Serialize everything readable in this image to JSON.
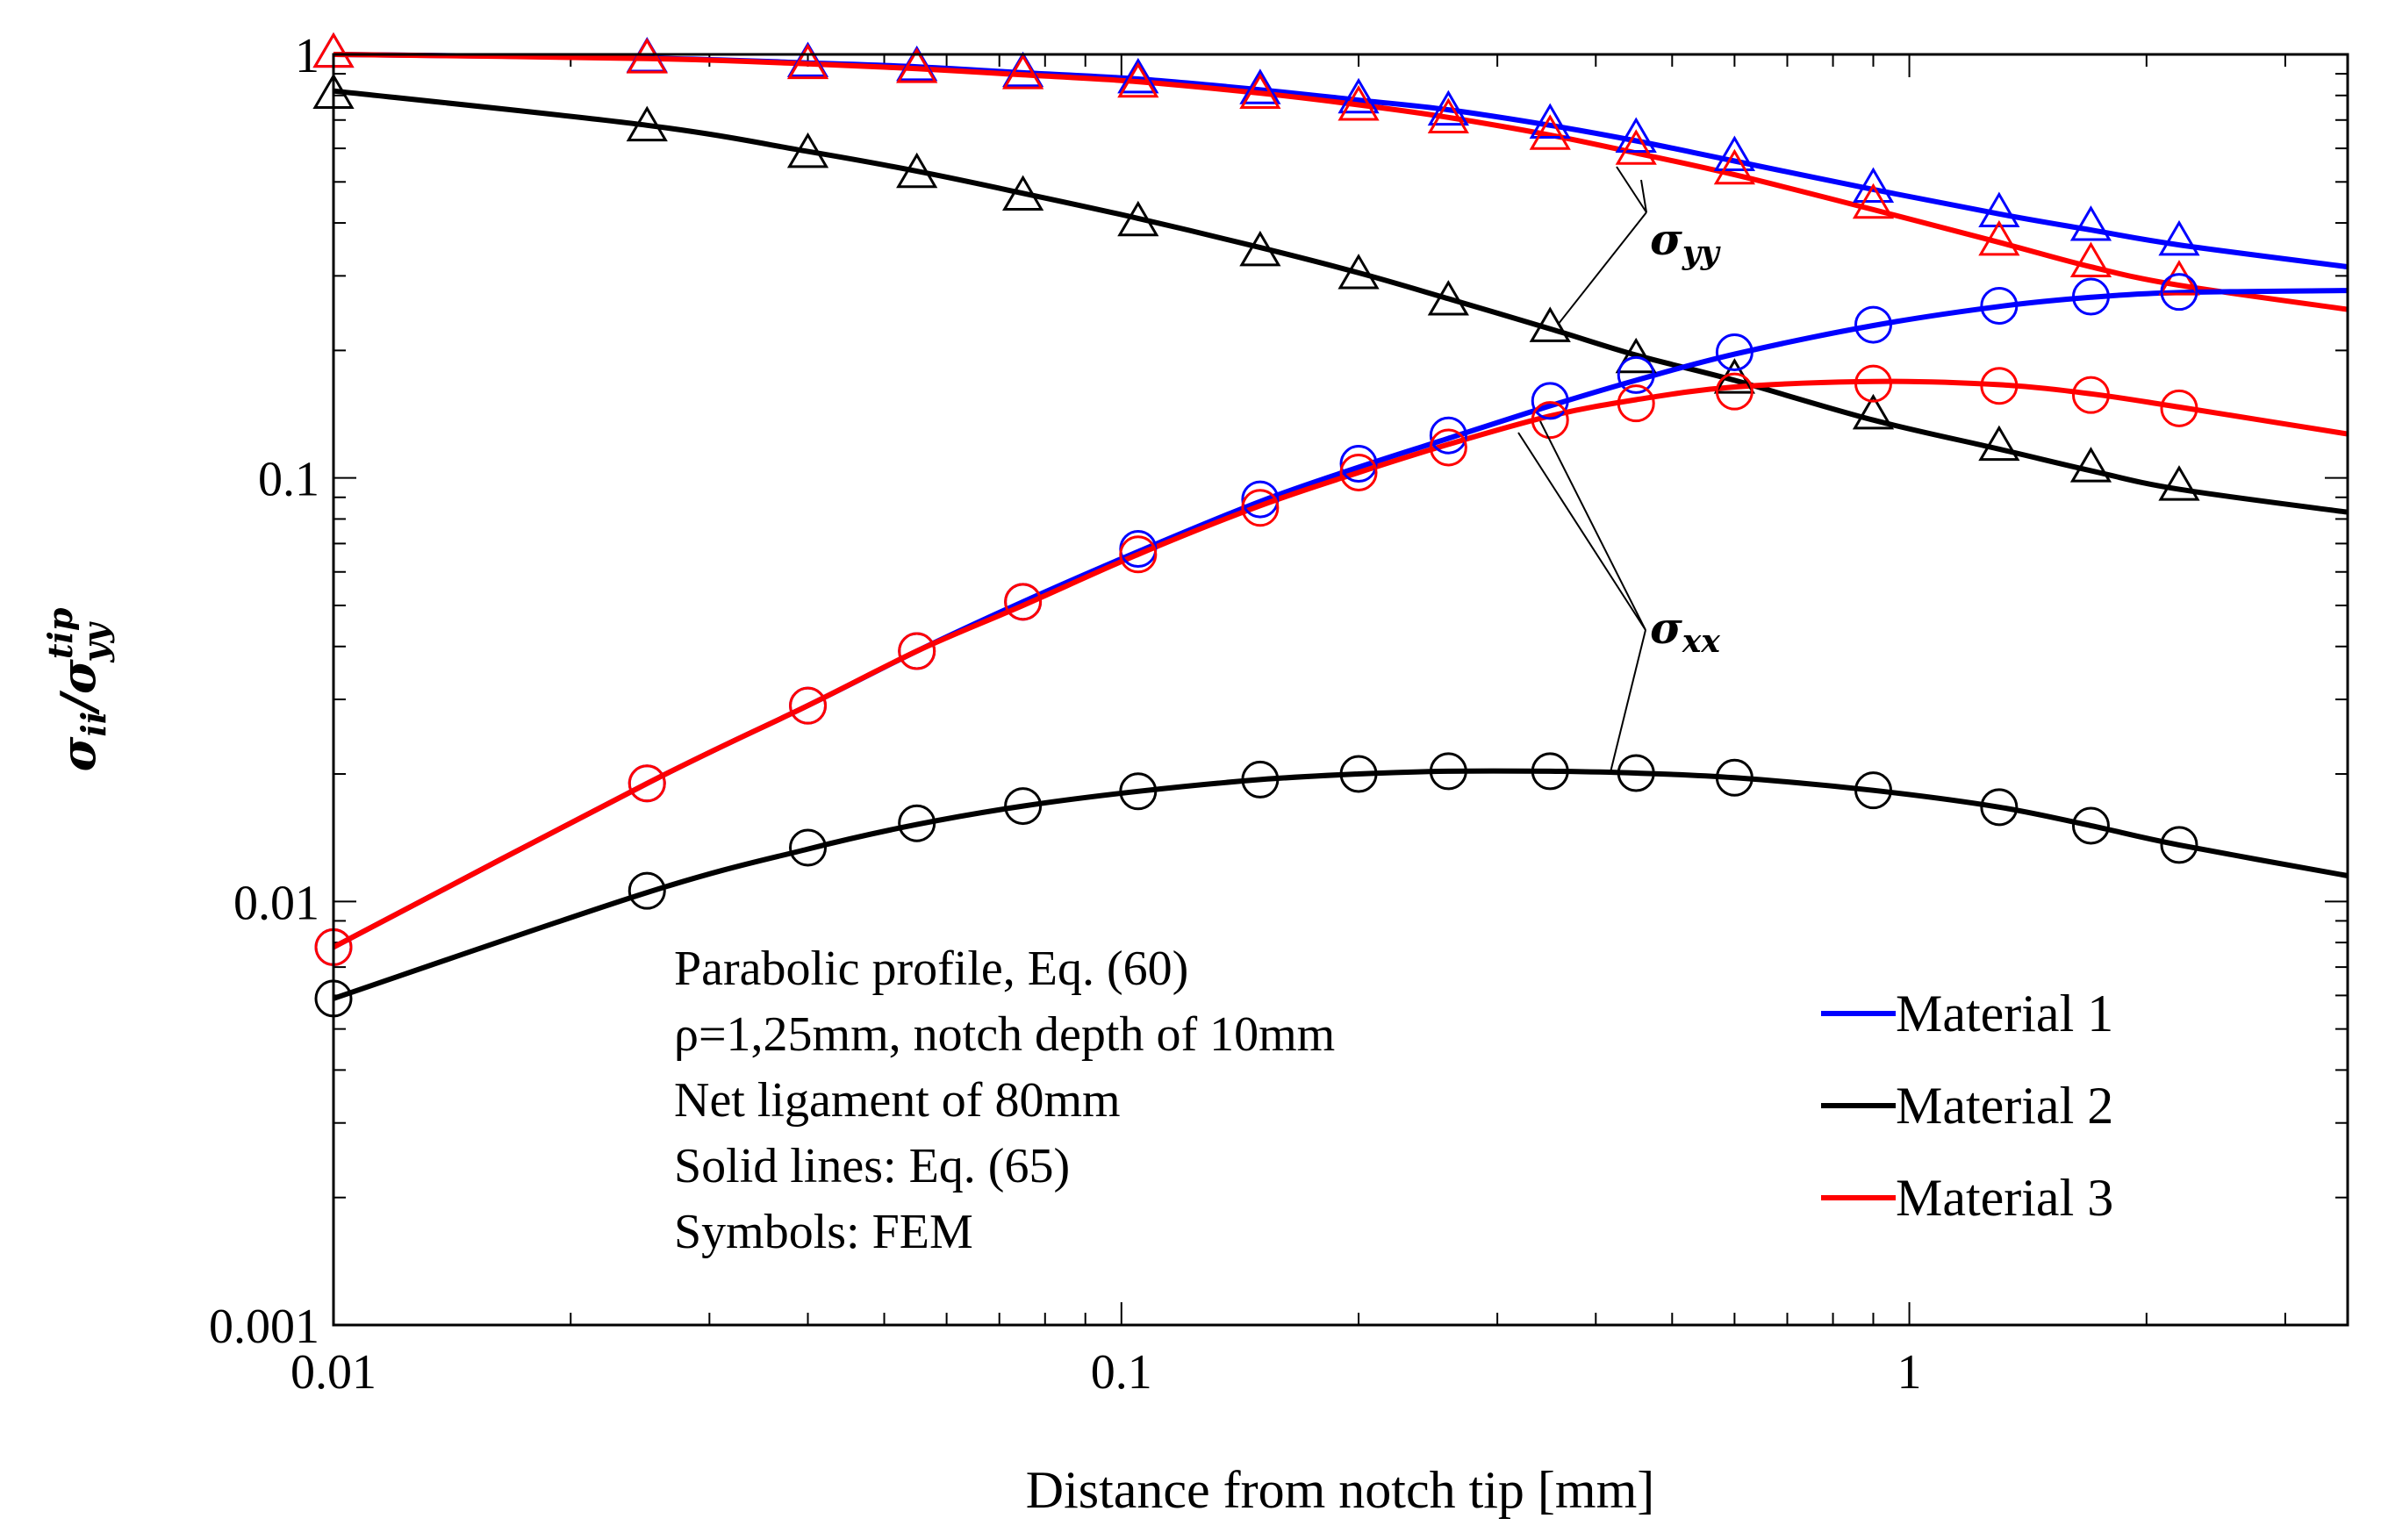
{
  "chart_data": {
    "type": "line",
    "xscale": "log",
    "yscale": "log",
    "xlim": [
      0.01,
      3.6
    ],
    "ylim": [
      0.001,
      1
    ],
    "xlabel": "Distance from notch tip [mm]",
    "ylabel": {
      "sym": "σ",
      "sub": "ii",
      "sep": "/",
      "den_sym": "σ",
      "den_sub": "yy",
      "den_sup": "tip"
    },
    "x_ticks": [
      {
        "value": 0.01,
        "label": "0.01"
      },
      {
        "value": 0.1,
        "label": "0.1"
      },
      {
        "value": 1,
        "label": "1"
      }
    ],
    "y_ticks": [
      {
        "value": 0.001,
        "label": "0.001"
      },
      {
        "value": 0.01,
        "label": "0.01"
      },
      {
        "value": 0.1,
        "label": "0.1"
      },
      {
        "value": 1,
        "label": "1"
      }
    ],
    "colors": {
      "material_1": "#0000ff",
      "material_2": "#000000",
      "material_3": "#ff0000"
    },
    "legend": {
      "position": "lower-right",
      "entries": [
        {
          "label": "Material 1",
          "color": "#0000ff"
        },
        {
          "label": "Material 2",
          "color": "#000000"
        },
        {
          "label": "Material 3",
          "color": "#ff0000"
        }
      ]
    },
    "notes": [
      "Parabolic profile, Eq. (60)",
      "ρ=1,25mm, notch depth of 10mm",
      "Net ligament of 80mm",
      "Solid lines: Eq. (65)",
      "Symbols: FEM"
    ],
    "annotations": [
      {
        "sym": "σ",
        "sub": "yy",
        "target": "sigma_yy curves"
      },
      {
        "sym": "σ",
        "sub": "xx",
        "target": "sigma_xx curves"
      }
    ],
    "series": [
      {
        "name": "Material 1 σyy (Eq. 65)",
        "kind": "line",
        "color": "#0000ff",
        "x": [
          0.01,
          0.025,
          0.04,
          0.055,
          0.075,
          0.105,
          0.15,
          0.2,
          0.26,
          0.35,
          0.45,
          0.6,
          0.9,
          1.3,
          1.7,
          2.2,
          3.6
        ],
        "y": [
          1.0,
          0.98,
          0.955,
          0.935,
          0.905,
          0.875,
          0.825,
          0.78,
          0.74,
          0.68,
          0.625,
          0.56,
          0.48,
          0.42,
          0.385,
          0.355,
          0.315
        ]
      },
      {
        "name": "Material 1 σyy (FEM)",
        "kind": "triangle",
        "color": "#0000ff",
        "x": [
          0.01,
          0.025,
          0.04,
          0.055,
          0.075,
          0.105,
          0.15,
          0.2,
          0.26,
          0.35,
          0.45,
          0.6,
          0.9,
          1.3,
          1.7,
          2.2
        ],
        "y": [
          1.0,
          0.975,
          0.95,
          0.93,
          0.9,
          0.87,
          0.82,
          0.78,
          0.73,
          0.68,
          0.63,
          0.57,
          0.48,
          0.42,
          0.39,
          0.36
        ]
      },
      {
        "name": "Material 2 σyy (Eq. 65)",
        "kind": "line",
        "color": "#000000",
        "x": [
          0.01,
          0.025,
          0.04,
          0.055,
          0.075,
          0.105,
          0.15,
          0.2,
          0.26,
          0.35,
          0.45,
          0.6,
          0.9,
          1.3,
          1.7,
          2.2,
          3.6
        ],
        "y": [
          0.82,
          0.68,
          0.59,
          0.53,
          0.47,
          0.41,
          0.35,
          0.305,
          0.265,
          0.225,
          0.195,
          0.17,
          0.137,
          0.117,
          0.104,
          0.094,
          0.083
        ]
      },
      {
        "name": "Material 2 σyy (FEM)",
        "kind": "triangle",
        "color": "#000000",
        "x": [
          0.01,
          0.025,
          0.04,
          0.055,
          0.075,
          0.105,
          0.15,
          0.2,
          0.26,
          0.35,
          0.45,
          0.6,
          0.9,
          1.3,
          1.7,
          2.2
        ],
        "y": [
          0.8,
          0.67,
          0.58,
          0.52,
          0.46,
          0.4,
          0.34,
          0.3,
          0.26,
          0.225,
          0.19,
          0.17,
          0.14,
          0.118,
          0.105,
          0.095
        ]
      },
      {
        "name": "Material 3 σyy (Eq. 65)",
        "kind": "line",
        "color": "#ff0000",
        "x": [
          0.01,
          0.025,
          0.04,
          0.055,
          0.075,
          0.105,
          0.15,
          0.2,
          0.26,
          0.35,
          0.45,
          0.6,
          0.9,
          1.3,
          1.7,
          2.2,
          3.6
        ],
        "y": [
          1.0,
          0.978,
          0.95,
          0.925,
          0.895,
          0.862,
          0.81,
          0.76,
          0.71,
          0.645,
          0.585,
          0.52,
          0.43,
          0.36,
          0.315,
          0.285,
          0.25
        ]
      },
      {
        "name": "Material 3 σyy (FEM)",
        "kind": "triangle",
        "color": "#ff0000",
        "x": [
          0.01,
          0.025,
          0.04,
          0.055,
          0.075,
          0.105,
          0.15,
          0.2,
          0.26,
          0.35,
          0.45,
          0.6,
          0.9,
          1.3,
          1.7,
          2.2
        ],
        "y": [
          1.0,
          0.97,
          0.94,
          0.92,
          0.89,
          0.85,
          0.8,
          0.75,
          0.7,
          0.64,
          0.59,
          0.53,
          0.44,
          0.36,
          0.32,
          0.29
        ]
      },
      {
        "name": "Material 1 σxx (Eq. 65)",
        "kind": "line",
        "color": "#0000ff",
        "x": [
          0.01,
          0.025,
          0.04,
          0.055,
          0.075,
          0.105,
          0.15,
          0.2,
          0.26,
          0.35,
          0.45,
          0.6,
          0.9,
          1.3,
          1.7,
          2.2,
          3.6
        ],
        "y": [
          0.0078,
          0.019,
          0.029,
          0.039,
          0.051,
          0.067,
          0.088,
          0.106,
          0.124,
          0.148,
          0.17,
          0.196,
          0.229,
          0.254,
          0.267,
          0.274,
          0.277
        ]
      },
      {
        "name": "Material 1 σxx (FEM)",
        "kind": "circle",
        "color": "#0000ff",
        "x": [
          0.01,
          0.025,
          0.04,
          0.055,
          0.075,
          0.105,
          0.15,
          0.2,
          0.26,
          0.35,
          0.45,
          0.6,
          0.9,
          1.3,
          1.7,
          2.2
        ],
        "y": [
          0.0078,
          0.019,
          0.029,
          0.039,
          0.051,
          0.068,
          0.089,
          0.108,
          0.126,
          0.152,
          0.175,
          0.198,
          0.23,
          0.255,
          0.268,
          0.275
        ]
      },
      {
        "name": "Material 2 σxx (Eq. 65)",
        "kind": "line",
        "color": "#000000",
        "x": [
          0.01,
          0.025,
          0.04,
          0.055,
          0.075,
          0.105,
          0.15,
          0.2,
          0.26,
          0.35,
          0.45,
          0.6,
          0.9,
          1.3,
          1.7,
          2.2,
          3.6
        ],
        "y": [
          0.0059,
          0.0105,
          0.0133,
          0.0152,
          0.0168,
          0.0182,
          0.0194,
          0.02,
          0.0203,
          0.0203,
          0.0201,
          0.0196,
          0.0183,
          0.0167,
          0.0151,
          0.0136,
          0.0115
        ]
      },
      {
        "name": "Material 2 σxx (FEM)",
        "kind": "circle",
        "color": "#000000",
        "x": [
          0.01,
          0.025,
          0.04,
          0.055,
          0.075,
          0.105,
          0.15,
          0.2,
          0.26,
          0.35,
          0.45,
          0.6,
          0.9,
          1.3,
          1.7,
          2.2
        ],
        "y": [
          0.0059,
          0.0106,
          0.0134,
          0.0153,
          0.0168,
          0.0182,
          0.0194,
          0.02,
          0.0203,
          0.0203,
          0.0201,
          0.0196,
          0.0183,
          0.0167,
          0.0151,
          0.0136
        ]
      },
      {
        "name": "Material 3 σxx (Eq. 65)",
        "kind": "line",
        "color": "#ff0000",
        "x": [
          0.01,
          0.025,
          0.04,
          0.055,
          0.075,
          0.105,
          0.15,
          0.2,
          0.26,
          0.35,
          0.45,
          0.6,
          0.9,
          1.3,
          1.7,
          2.2,
          3.6
        ],
        "y": [
          0.0078,
          0.019,
          0.029,
          0.039,
          0.05,
          0.066,
          0.086,
          0.103,
          0.12,
          0.14,
          0.153,
          0.164,
          0.169,
          0.166,
          0.158,
          0.147,
          0.127
        ]
      },
      {
        "name": "Material 3 σxx (FEM)",
        "kind": "circle",
        "color": "#ff0000",
        "x": [
          0.01,
          0.025,
          0.04,
          0.055,
          0.075,
          0.105,
          0.15,
          0.2,
          0.26,
          0.35,
          0.45,
          0.6,
          0.9,
          1.3,
          1.7,
          2.2
        ],
        "y": [
          0.0078,
          0.019,
          0.029,
          0.039,
          0.051,
          0.066,
          0.085,
          0.103,
          0.118,
          0.137,
          0.15,
          0.16,
          0.167,
          0.165,
          0.157,
          0.146
        ]
      }
    ]
  }
}
